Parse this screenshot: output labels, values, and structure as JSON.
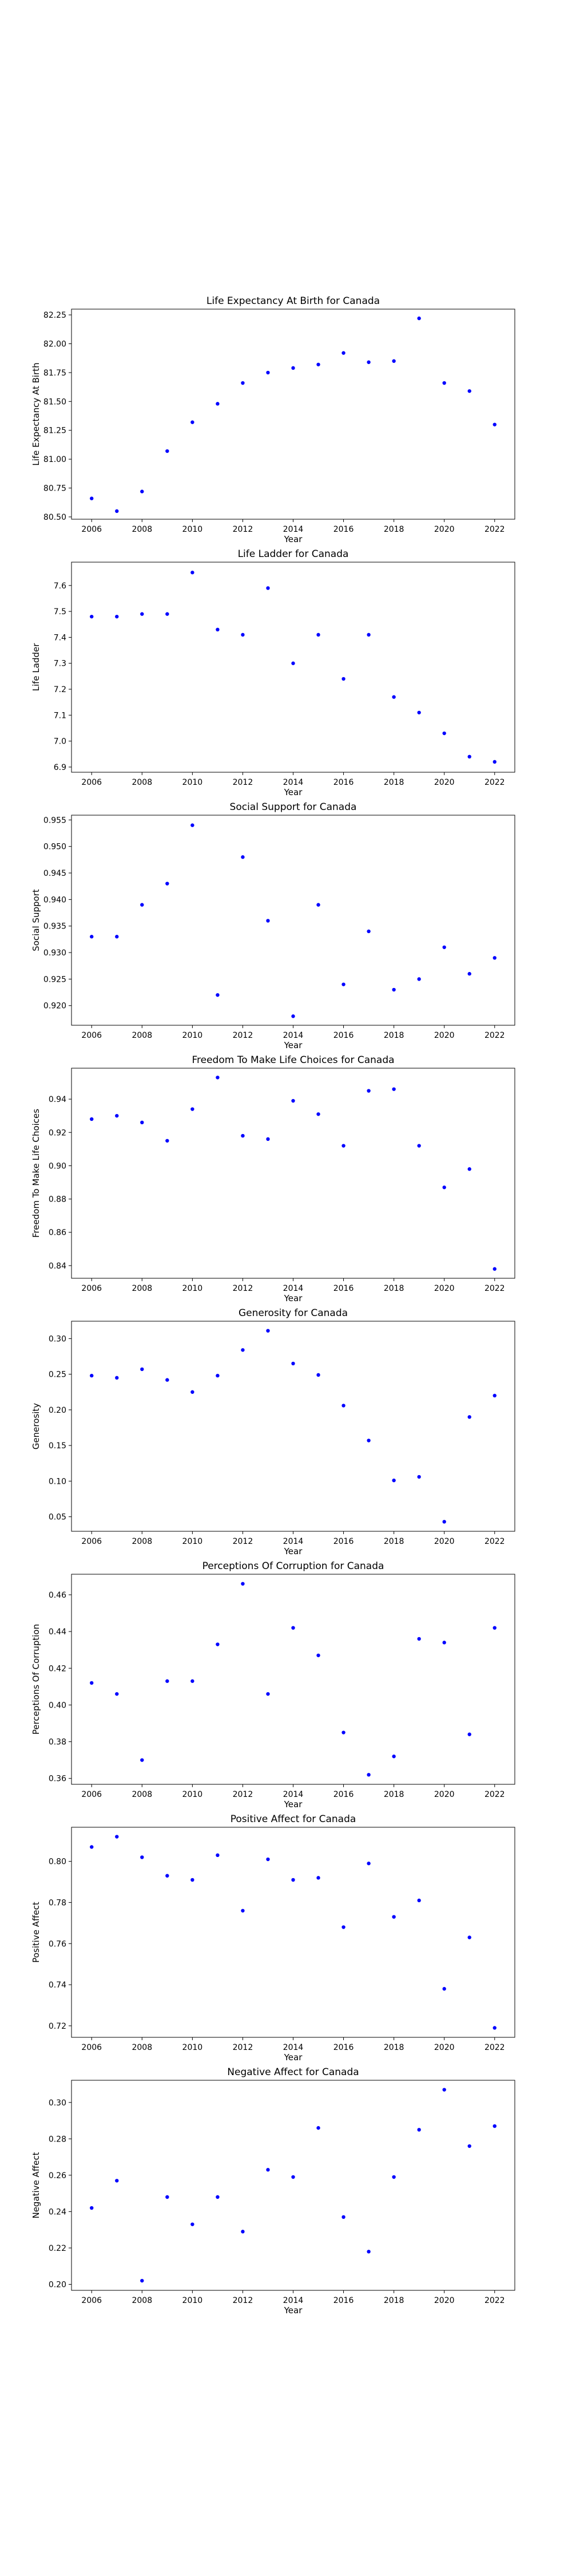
{
  "figure": {
    "marker_color": "#0000ff",
    "axis_color": "#000000",
    "background": "#ffffff"
  },
  "chart_data": [
    {
      "type": "scatter",
      "title": "Life Expectancy At Birth for Canada",
      "xlabel": "Year",
      "ylabel": "Life Expectancy At Birth",
      "x": [
        2006,
        2007,
        2008,
        2009,
        2010,
        2011,
        2012,
        2013,
        2014,
        2015,
        2016,
        2017,
        2018,
        2019,
        2020,
        2021,
        2022
      ],
      "y": [
        80.66,
        80.55,
        80.72,
        81.07,
        81.32,
        81.48,
        81.66,
        81.75,
        81.79,
        81.82,
        81.92,
        81.84,
        81.85,
        82.22,
        81.66,
        81.59,
        81.3
      ],
      "xlim": [
        2005.2,
        2022.8
      ],
      "ylim": [
        80.48,
        82.3
      ],
      "xticks": [
        2006,
        2008,
        2010,
        2012,
        2014,
        2016,
        2018,
        2020,
        2022
      ],
      "yticks": [
        "80.50",
        "80.75",
        "81.00",
        "81.25",
        "81.50",
        "81.75",
        "82.00",
        "82.25"
      ],
      "grid": false
    },
    {
      "type": "scatter",
      "title": "Life Ladder for Canada",
      "xlabel": "Year",
      "ylabel": "Life Ladder",
      "x": [
        2006,
        2007,
        2008,
        2009,
        2010,
        2011,
        2012,
        2013,
        2014,
        2015,
        2016,
        2017,
        2018,
        2019,
        2020,
        2021,
        2022
      ],
      "y": [
        7.48,
        7.48,
        7.49,
        7.49,
        7.65,
        7.43,
        7.41,
        7.59,
        7.3,
        7.41,
        7.24,
        7.41,
        7.17,
        7.11,
        7.03,
        6.94,
        6.92
      ],
      "xlim": [
        2005.2,
        2022.8
      ],
      "ylim": [
        6.88,
        7.69
      ],
      "xticks": [
        2006,
        2008,
        2010,
        2012,
        2014,
        2016,
        2018,
        2020,
        2022
      ],
      "yticks": [
        "6.9",
        "7.0",
        "7.1",
        "7.2",
        "7.3",
        "7.4",
        "7.5",
        "7.6"
      ],
      "grid": false
    },
    {
      "type": "scatter",
      "title": "Social Support for Canada",
      "xlabel": "Year",
      "ylabel": "Social Support",
      "x": [
        2006,
        2007,
        2008,
        2009,
        2010,
        2011,
        2012,
        2013,
        2014,
        2015,
        2016,
        2017,
        2018,
        2019,
        2020,
        2021,
        2022
      ],
      "y": [
        0.933,
        0.933,
        0.939,
        0.943,
        0.954,
        0.922,
        0.948,
        0.936,
        0.918,
        0.939,
        0.924,
        0.934,
        0.923,
        0.925,
        0.931,
        0.926,
        0.929
      ],
      "xlim": [
        2005.2,
        2022.8
      ],
      "ylim": [
        0.9163,
        0.9559
      ],
      "xticks": [
        2006,
        2008,
        2010,
        2012,
        2014,
        2016,
        2018,
        2020,
        2022
      ],
      "yticks": [
        "0.920",
        "0.925",
        "0.930",
        "0.935",
        "0.940",
        "0.945",
        "0.950",
        "0.955"
      ],
      "grid": false
    },
    {
      "type": "scatter",
      "title": "Freedom To Make Life Choices for Canada",
      "xlabel": "Year",
      "ylabel": "Freedom To Make Life Choices",
      "x": [
        2006,
        2007,
        2008,
        2009,
        2010,
        2011,
        2012,
        2013,
        2014,
        2015,
        2016,
        2017,
        2018,
        2019,
        2020,
        2021,
        2022
      ],
      "y": [
        0.928,
        0.93,
        0.926,
        0.915,
        0.934,
        0.953,
        0.918,
        0.916,
        0.939,
        0.931,
        0.912,
        0.945,
        0.946,
        0.912,
        0.887,
        0.898,
        0.838
      ],
      "xlim": [
        2005.2,
        2022.8
      ],
      "ylim": [
        0.8324,
        0.9586
      ],
      "xticks": [
        2006,
        2008,
        2010,
        2012,
        2014,
        2016,
        2018,
        2020,
        2022
      ],
      "yticks": [
        "0.84",
        "0.86",
        "0.88",
        "0.90",
        "0.92",
        "0.94"
      ],
      "grid": false
    },
    {
      "type": "scatter",
      "title": "Generosity for Canada",
      "xlabel": "Year",
      "ylabel": "Generosity",
      "x": [
        2006,
        2007,
        2008,
        2009,
        2010,
        2011,
        2012,
        2013,
        2014,
        2015,
        2016,
        2017,
        2018,
        2019,
        2020,
        2021,
        2022
      ],
      "y": [
        0.248,
        0.245,
        0.257,
        0.242,
        0.225,
        0.248,
        0.284,
        0.311,
        0.265,
        0.249,
        0.206,
        0.157,
        0.101,
        0.106,
        0.043,
        0.19,
        0.22
      ],
      "xlim": [
        2005.2,
        2022.8
      ],
      "ylim": [
        0.0296,
        0.3244
      ],
      "xticks": [
        2006,
        2008,
        2010,
        2012,
        2014,
        2016,
        2018,
        2020,
        2022
      ],
      "yticks": [
        "0.05",
        "0.10",
        "0.15",
        "0.20",
        "0.25",
        "0.30"
      ],
      "grid": false
    },
    {
      "type": "scatter",
      "title": "Perceptions Of Corruption for Canada",
      "xlabel": "Year",
      "ylabel": "Perceptions Of Corruption",
      "x": [
        2006,
        2007,
        2008,
        2009,
        2010,
        2011,
        2012,
        2013,
        2014,
        2015,
        2016,
        2017,
        2018,
        2019,
        2020,
        2021,
        2022
      ],
      "y": [
        0.412,
        0.406,
        0.37,
        0.413,
        0.413,
        0.433,
        0.466,
        0.406,
        0.442,
        0.427,
        0.385,
        0.362,
        0.372,
        0.436,
        0.434,
        0.384,
        0.442
      ],
      "xlim": [
        2005.2,
        2022.8
      ],
      "ylim": [
        0.3568,
        0.4712
      ],
      "xticks": [
        2006,
        2008,
        2010,
        2012,
        2014,
        2016,
        2018,
        2020,
        2022
      ],
      "yticks": [
        "0.36",
        "0.38",
        "0.40",
        "0.42",
        "0.44",
        "0.46"
      ],
      "grid": false
    },
    {
      "type": "scatter",
      "title": "Positive Affect for Canada",
      "xlabel": "Year",
      "ylabel": "Positive Affect",
      "x": [
        2006,
        2007,
        2008,
        2009,
        2010,
        2011,
        2012,
        2013,
        2014,
        2015,
        2016,
        2017,
        2018,
        2019,
        2020,
        2021,
        2022
      ],
      "y": [
        0.807,
        0.812,
        0.802,
        0.793,
        0.791,
        0.803,
        0.776,
        0.801,
        0.791,
        0.792,
        0.768,
        0.799,
        0.773,
        0.781,
        0.738,
        0.763,
        0.719
      ],
      "xlim": [
        2005.2,
        2022.8
      ],
      "ylim": [
        0.7144,
        0.8166
      ],
      "xticks": [
        2006,
        2008,
        2010,
        2012,
        2014,
        2016,
        2018,
        2020,
        2022
      ],
      "yticks": [
        "0.72",
        "0.74",
        "0.76",
        "0.78",
        "0.80"
      ],
      "grid": false
    },
    {
      "type": "scatter",
      "title": "Negative Affect for Canada",
      "xlabel": "Year",
      "ylabel": "Negative Affect",
      "x": [
        2006,
        2007,
        2008,
        2009,
        2010,
        2011,
        2012,
        2013,
        2014,
        2015,
        2016,
        2017,
        2018,
        2019,
        2020,
        2021,
        2022
      ],
      "y": [
        0.242,
        0.257,
        0.202,
        0.248,
        0.233,
        0.248,
        0.229,
        0.263,
        0.259,
        0.286,
        0.237,
        0.218,
        0.259,
        0.285,
        0.307,
        0.276,
        0.287
      ],
      "xlim": [
        2005.2,
        2022.8
      ],
      "ylim": [
        0.1967,
        0.3122
      ],
      "xticks": [
        2006,
        2008,
        2010,
        2012,
        2014,
        2016,
        2018,
        2020,
        2022
      ],
      "yticks": [
        "0.20",
        "0.22",
        "0.24",
        "0.26",
        "0.28",
        "0.30"
      ],
      "grid": false
    }
  ]
}
